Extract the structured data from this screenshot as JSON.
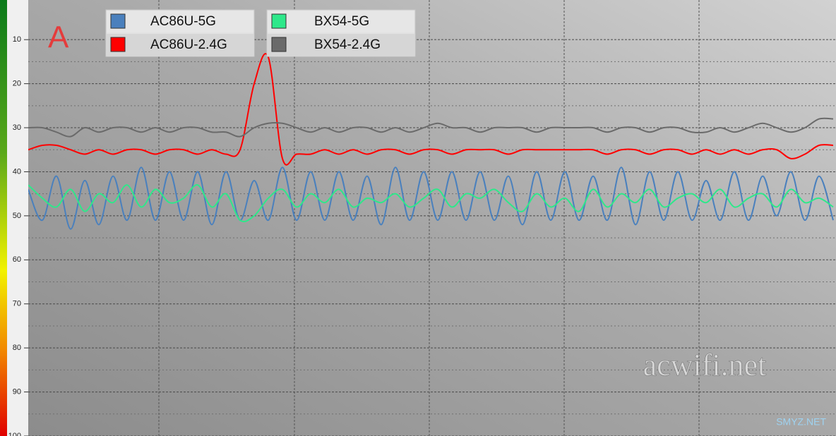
{
  "chart_data": {
    "type": "line",
    "annotations": {
      "label": "A",
      "watermark": "acwifi.net",
      "source": "SMYZ.NET"
    },
    "x": [
      0,
      1,
      2,
      3,
      4,
      5,
      6,
      7,
      8,
      9,
      10,
      11,
      12,
      13,
      14,
      15,
      16,
      17,
      18,
      19,
      20,
      21,
      22,
      23,
      24,
      25,
      26,
      27,
      28,
      29,
      30,
      31,
      32,
      33,
      34,
      35,
      36,
      37,
      38,
      39,
      40,
      41,
      42,
      43,
      44,
      45,
      46,
      47,
      48,
      49,
      50,
      51,
      52,
      53,
      54,
      55,
      56,
      57
    ],
    "xlim": [
      0,
      57.2
    ],
    "ylim": [
      1,
      100
    ],
    "y_inverted": true,
    "yticks": [
      10,
      20,
      30,
      40,
      50,
      60,
      70,
      80,
      90,
      100
    ],
    "grid": true,
    "legend": "top-left",
    "series": [
      {
        "name": "AC86U-5G",
        "color": "#4a80bd",
        "values": [
          44,
          51,
          41,
          53,
          42,
          52,
          41,
          51,
          39,
          51,
          40,
          51,
          40,
          52,
          40,
          51,
          42,
          51,
          39,
          51,
          40,
          51,
          40,
          51,
          41,
          52,
          39,
          51,
          40,
          51,
          40,
          51,
          40,
          51,
          41,
          52,
          40,
          51,
          40,
          51,
          41,
          51,
          39,
          52,
          40,
          51,
          40,
          51,
          42,
          51,
          40,
          51,
          41,
          50,
          40,
          51,
          41,
          51
        ]
      },
      {
        "name": "AC86U-2.4G",
        "color": "#ff0000",
        "values": [
          35,
          34,
          34,
          35,
          36,
          35,
          36,
          35,
          35,
          36,
          35,
          35,
          36,
          35,
          36,
          35,
          20,
          14,
          37,
          36,
          36,
          35,
          36,
          35,
          36,
          35,
          35,
          36,
          35,
          35,
          36,
          35,
          35,
          35,
          36,
          35,
          35,
          35,
          35,
          35,
          35,
          36,
          35,
          35,
          36,
          35,
          35,
          36,
          35,
          36,
          35,
          36,
          35,
          35,
          37,
          36,
          34,
          34
        ]
      },
      {
        "name": "BX54-5G",
        "color": "#2ee88a",
        "values": [
          43,
          46,
          48,
          44,
          49,
          45,
          47,
          43,
          48,
          44,
          47,
          46,
          43,
          48,
          45,
          51,
          50,
          46,
          44,
          48,
          45,
          47,
          44,
          48,
          46,
          47,
          45,
          48,
          46,
          44,
          48,
          45,
          46,
          44,
          47,
          49,
          45,
          48,
          46,
          49,
          44,
          48,
          45,
          47,
          44,
          48,
          46,
          45,
          47,
          44,
          48,
          46,
          45,
          48,
          44,
          47,
          46,
          48
        ]
      },
      {
        "name": "BX54-2.4G",
        "color": "#6a6a6a",
        "values": [
          30,
          30,
          31,
          32,
          30,
          31,
          30,
          30,
          31,
          30,
          31,
          30,
          30,
          31,
          31,
          32,
          30,
          29,
          29,
          30,
          31,
          30,
          31,
          30,
          30,
          31,
          30,
          31,
          30,
          29,
          30,
          30,
          31,
          30,
          30,
          30,
          31,
          30,
          30,
          30,
          30,
          31,
          30,
          30,
          31,
          30,
          30,
          31,
          31,
          30,
          31,
          30,
          29,
          30,
          31,
          30,
          28,
          28
        ]
      }
    ]
  }
}
